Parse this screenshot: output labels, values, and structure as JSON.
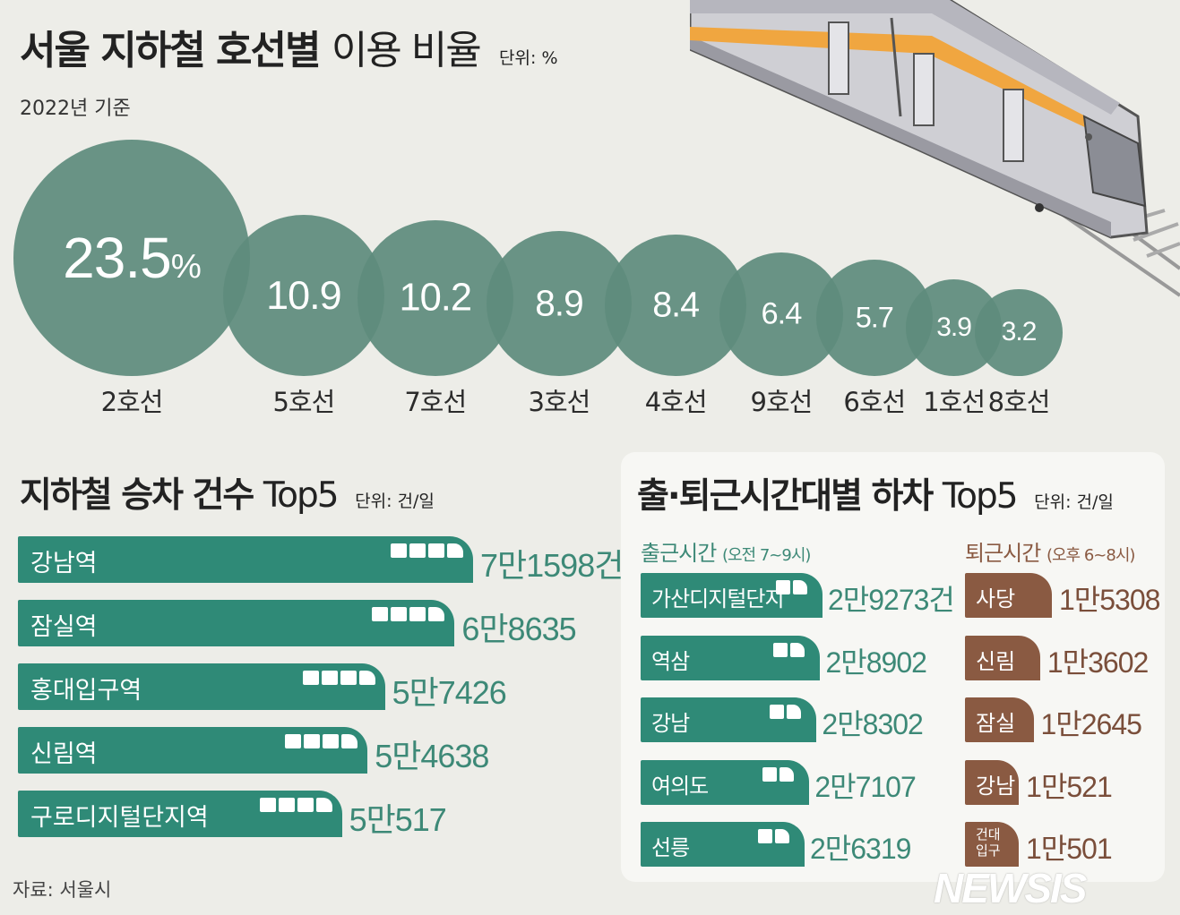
{
  "title": {
    "bold": "서울 지하철 호선별",
    "light": "이용 비율",
    "unit": "단위: %"
  },
  "subtitle": "2022년 기준",
  "colors": {
    "bubble": "#5f8c7d",
    "bar": "#2f8a77",
    "bar_value": "#3d8977",
    "evening": "#8a5a42",
    "evening_value": "#7a4e3a"
  },
  "chart_data": [
    {
      "type": "bubble",
      "title": "서울 지하철 호선별 이용 비율",
      "unit": "%",
      "categories": [
        "2호선",
        "5호선",
        "7호선",
        "3호선",
        "4호선",
        "9호선",
        "6호선",
        "1호선",
        "8호선"
      ],
      "values": [
        23.5,
        10.9,
        10.2,
        8.9,
        8.4,
        6.4,
        5.7,
        3.9,
        3.2
      ],
      "value_labels": [
        "23.5",
        "10.9",
        "10.2",
        "8.9",
        "8.4",
        "6.4",
        "5.7",
        "3.9",
        "3.2"
      ],
      "first_value_suffix": "%"
    },
    {
      "type": "bar",
      "title": "지하철 승차 건수 Top5",
      "unit": "건/일",
      "categories": [
        "강남역",
        "잠실역",
        "홍대입구역",
        "신림역",
        "구로디지털단지역"
      ],
      "values": [
        71598,
        68635,
        57426,
        54638,
        50517
      ],
      "value_labels": [
        "7만1598건",
        "6만8635",
        "5만7426",
        "5만4638",
        "5만517"
      ]
    },
    {
      "type": "bar",
      "title": "출근시간 (오전 7~9시) 하차 Top5",
      "unit": "건/일",
      "categories": [
        "가산디지털단지",
        "역삼",
        "강남",
        "여의도",
        "선릉"
      ],
      "values": [
        29273,
        28902,
        28302,
        27107,
        26319
      ],
      "value_labels": [
        "2만9273건",
        "2만8902",
        "2만8302",
        "2만7107",
        "2만6319"
      ]
    },
    {
      "type": "bar",
      "title": "퇴근시간 (오후 6~8시) 하차 Top5",
      "unit": "건/일",
      "categories": [
        "사당",
        "신림",
        "잠실",
        "강남",
        "건대\n입구"
      ],
      "values": [
        15308,
        13602,
        12645,
        10521,
        10501
      ],
      "value_labels": [
        "1만5308",
        "1만3602",
        "1만2645",
        "1만521",
        "1만501"
      ]
    }
  ],
  "boarding": {
    "title_bold": "지하철 승차 건수",
    "title_light": "Top5",
    "unit": "단위: 건/일"
  },
  "panel": {
    "title_bold": "출·퇴근시간대별 하차",
    "title_light": "Top5",
    "unit": "단위: 건/일",
    "morning_head": "출근시간",
    "morning_sub": "(오전 7~9시)",
    "evening_head": "퇴근시간",
    "evening_sub": "(오후 6~8시)"
  },
  "source": "자료: 서울시",
  "logo": "NEWSIS"
}
